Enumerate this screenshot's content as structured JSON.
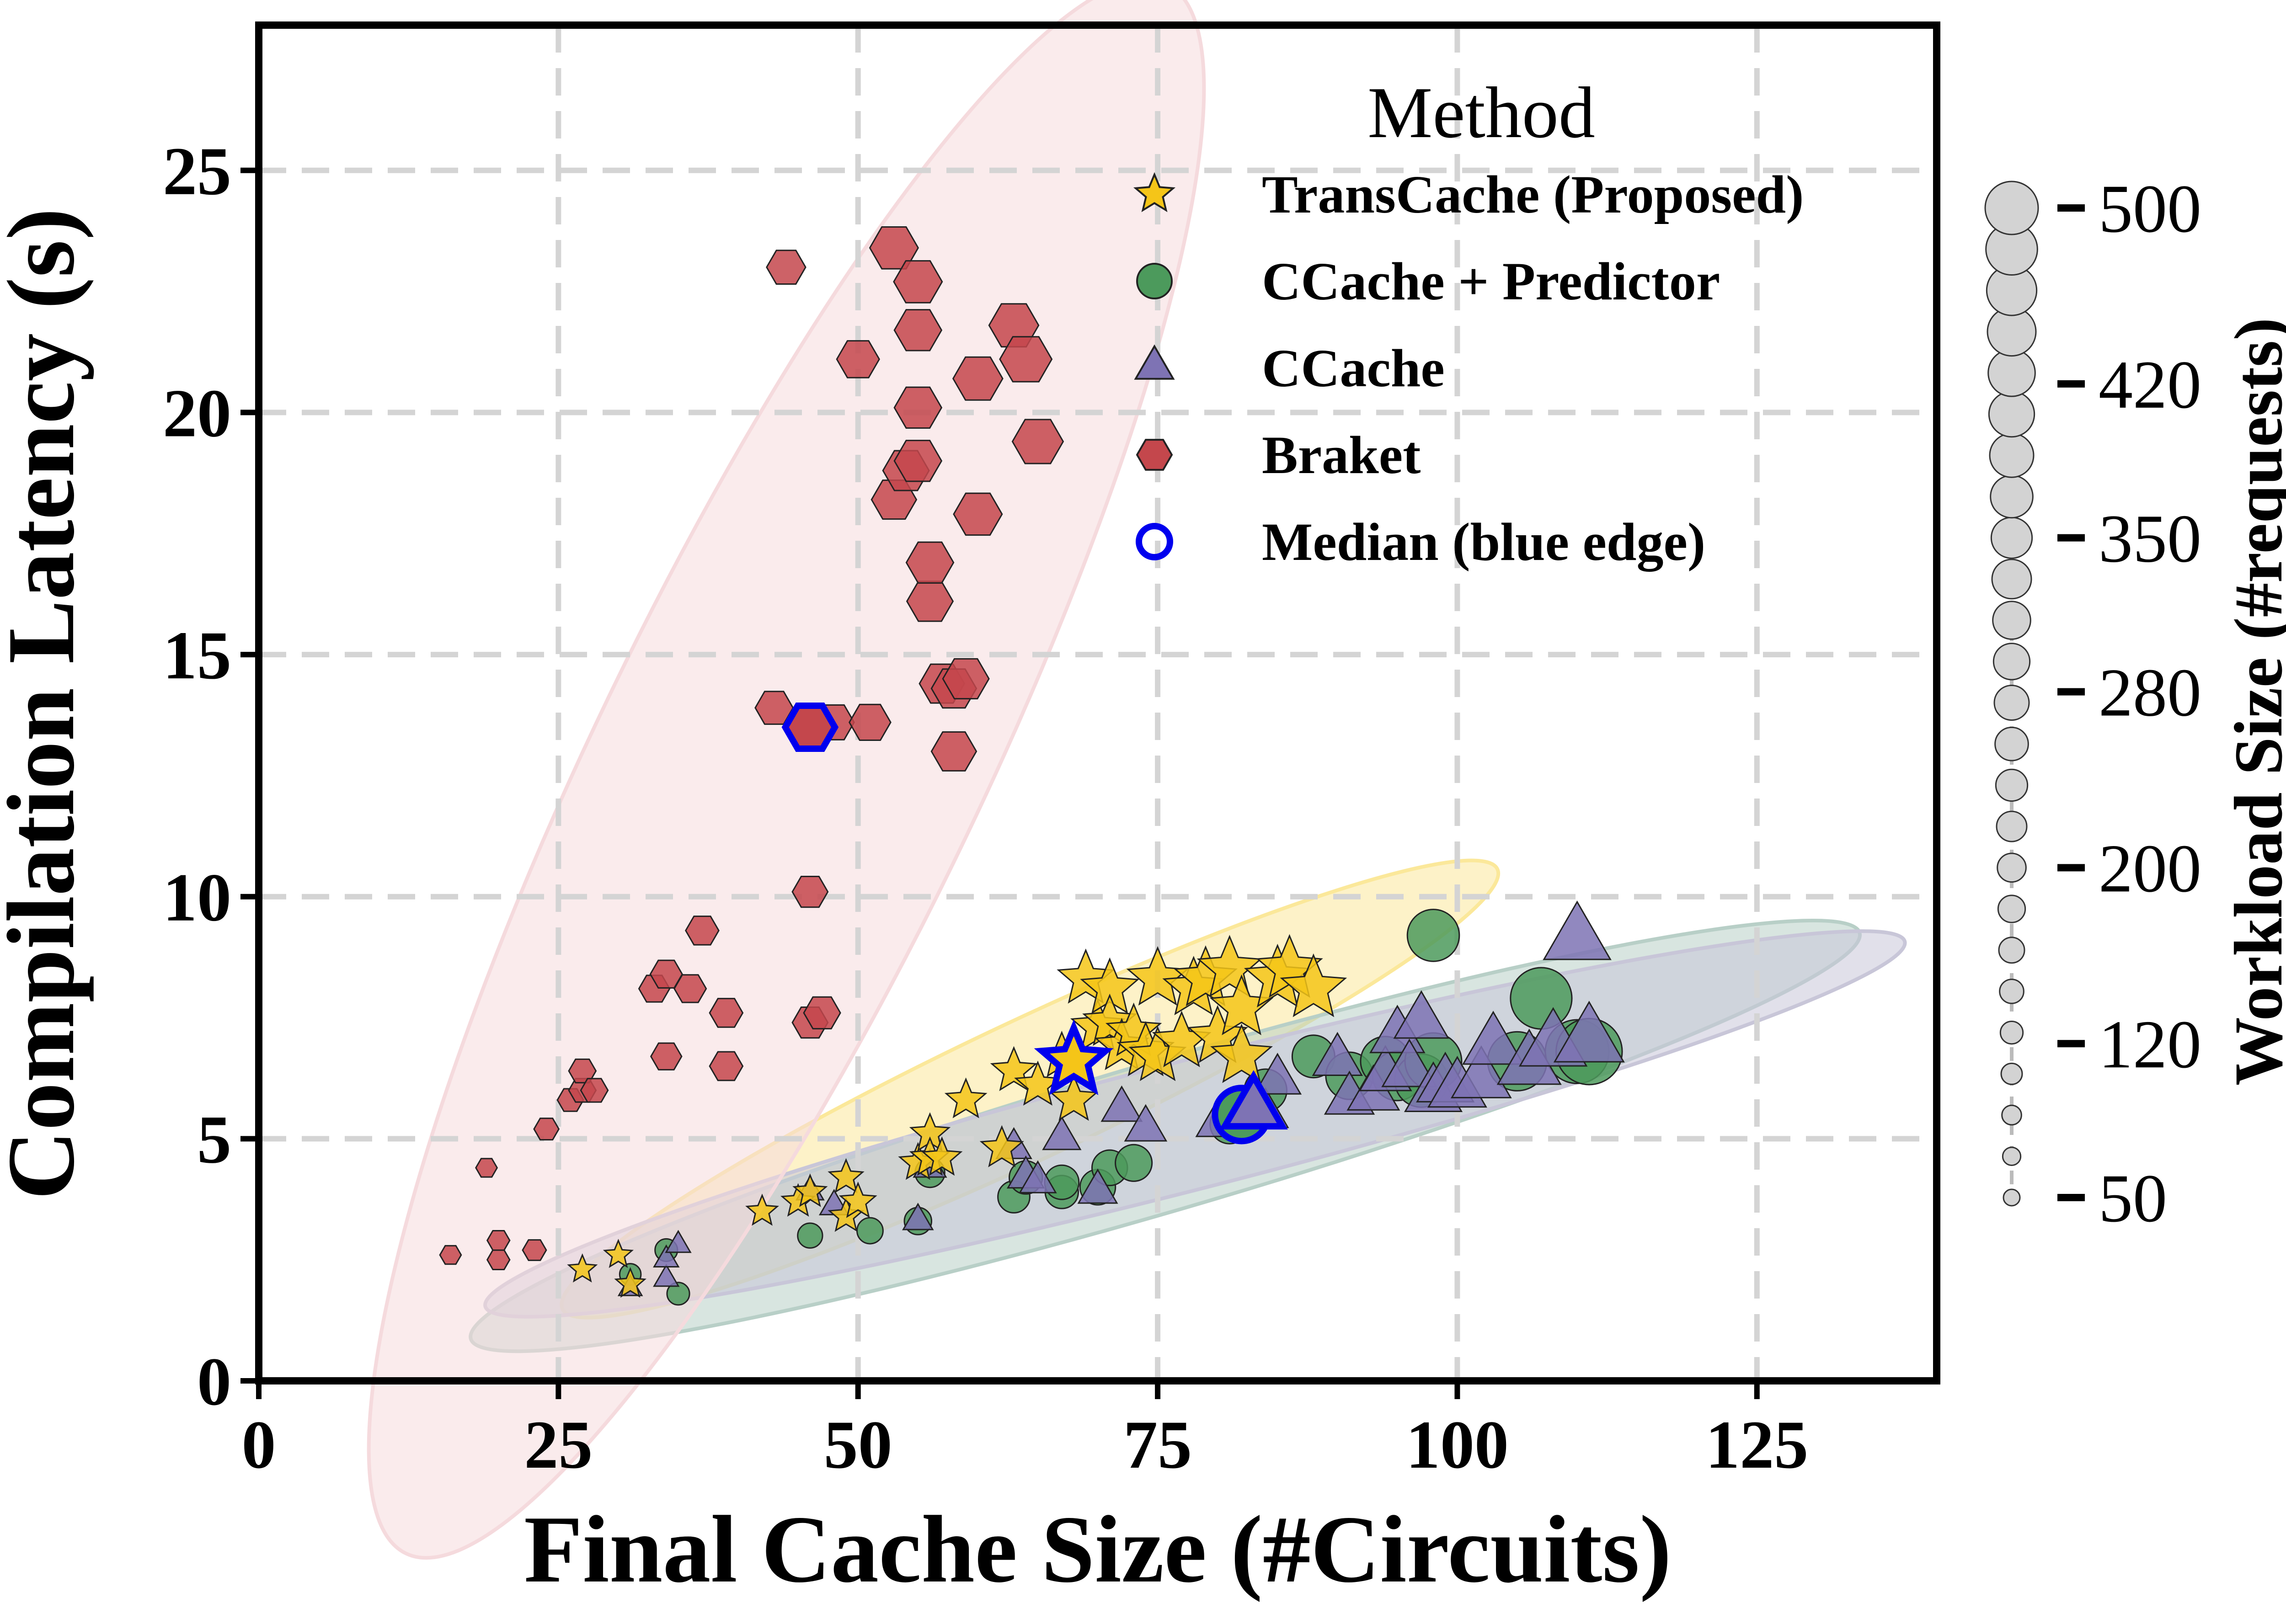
{
  "chart_data": {
    "type": "scatter",
    "xlabel": "Final Cache Size (#Circuits)",
    "ylabel": "Compilation Latency (s)",
    "xlim": [
      0,
      140
    ],
    "ylim": [
      0,
      28
    ],
    "xticks": [
      0,
      25,
      50,
      75,
      100,
      125
    ],
    "yticks": [
      0,
      5,
      10,
      15,
      20,
      25
    ],
    "grid": true,
    "legend": {
      "title": "Method",
      "position": "top-right",
      "entries": [
        {
          "label": "TransCache (Proposed)",
          "marker": "star",
          "color": "#f5c518"
        },
        {
          "label": "CCache + Predictor",
          "marker": "circle",
          "color": "#4c9a5c"
        },
        {
          "label": "CCache",
          "marker": "triangle",
          "color": "#7e73b4"
        },
        {
          "label": "Braket",
          "marker": "hexagon",
          "color": "#c4474c"
        },
        {
          "label": "Median (blue edge)",
          "marker": "circle-open",
          "color": "#0000ee"
        }
      ]
    },
    "size_legend": {
      "title": "Workload Size (#requests)",
      "min": 50,
      "max": 500,
      "ticks": [
        500,
        420,
        350,
        280,
        200,
        120,
        50
      ]
    },
    "series": [
      {
        "name": "TransCache (Proposed)",
        "marker": "star",
        "color": "#f5c518",
        "ellipse_color": "#fbe89a",
        "points": [
          [
            27,
            2.3,
            60
          ],
          [
            30,
            2.6,
            60
          ],
          [
            31,
            2.0,
            70
          ],
          [
            42,
            3.5,
            80
          ],
          [
            45,
            3.7,
            90
          ],
          [
            46,
            3.9,
            90
          ],
          [
            49,
            3.4,
            100
          ],
          [
            49,
            4.2,
            100
          ],
          [
            50,
            3.7,
            110
          ],
          [
            55,
            4.5,
            120
          ],
          [
            56,
            5.1,
            130
          ],
          [
            56,
            4.6,
            130
          ],
          [
            57,
            4.6,
            130
          ],
          [
            59,
            5.8,
            140
          ],
          [
            62,
            4.8,
            150
          ],
          [
            63,
            6.4,
            170
          ],
          [
            65,
            6.1,
            170
          ],
          [
            67,
            6.7,
            180
          ],
          [
            68,
            5.8,
            180
          ],
          [
            69,
            8.3,
            240
          ],
          [
            70,
            7.3,
            220
          ],
          [
            71,
            8.1,
            250
          ],
          [
            71,
            7.4,
            220
          ],
          [
            72,
            6.9,
            220
          ],
          [
            73,
            7.2,
            230
          ],
          [
            74,
            6.8,
            240
          ],
          [
            75,
            8.3,
            270
          ],
          [
            75,
            6.7,
            240
          ],
          [
            77,
            7.0,
            250
          ],
          [
            78,
            8.1,
            270
          ],
          [
            79,
            8.3,
            280
          ],
          [
            80,
            7.1,
            260
          ],
          [
            81,
            8.5,
            290
          ],
          [
            82,
            7.7,
            280
          ],
          [
            82,
            6.7,
            270
          ],
          [
            85,
            8.3,
            300
          ],
          [
            86,
            8.5,
            300
          ],
          [
            88,
            8.1,
            300
          ]
        ],
        "median": [
          68,
          6.6,
          300
        ]
      },
      {
        "name": "CCache + Predictor",
        "marker": "circle",
        "color": "#4c9a5c",
        "ellipse_color": "#b8cfc7",
        "points": [
          [
            31,
            2.2,
            60
          ],
          [
            34,
            2.7,
            70
          ],
          [
            35,
            1.8,
            70
          ],
          [
            46,
            3.0,
            90
          ],
          [
            51,
            3.1,
            100
          ],
          [
            55,
            3.3,
            110
          ],
          [
            56,
            4.3,
            130
          ],
          [
            63,
            3.8,
            150
          ],
          [
            64,
            4.2,
            160
          ],
          [
            67,
            3.9,
            160
          ],
          [
            67,
            4.1,
            170
          ],
          [
            70,
            4.0,
            180
          ],
          [
            71,
            4.4,
            180
          ],
          [
            73,
            4.5,
            190
          ],
          [
            81,
            5.3,
            210
          ],
          [
            84,
            6.0,
            240
          ],
          [
            88,
            6.7,
            240
          ],
          [
            91,
            6.3,
            280
          ],
          [
            94,
            6.6,
            300
          ],
          [
            95,
            6.3,
            300
          ],
          [
            97,
            6.2,
            330
          ],
          [
            98,
            6.6,
            360
          ],
          [
            98,
            9.2,
            320
          ],
          [
            105,
            6.6,
            380
          ],
          [
            107,
            7.9,
            400
          ],
          [
            110,
            6.8,
            420
          ],
          [
            111,
            6.8,
            440
          ]
        ],
        "median": [
          82,
          5.5,
          330
        ]
      },
      {
        "name": "CCache",
        "marker": "triangle",
        "color": "#7e73b4",
        "ellipse_color": "#c8c6d8",
        "points": [
          [
            31,
            1.9,
            60
          ],
          [
            34,
            2.1,
            70
          ],
          [
            34,
            2.5,
            70
          ],
          [
            35,
            2.8,
            70
          ],
          [
            46,
            3.9,
            90
          ],
          [
            48,
            3.6,
            100
          ],
          [
            55,
            3.3,
            110
          ],
          [
            56,
            4.4,
            130
          ],
          [
            63,
            4.8,
            150
          ],
          [
            64,
            4.2,
            160
          ],
          [
            65,
            4.1,
            160
          ],
          [
            67,
            5.0,
            170
          ],
          [
            70,
            3.9,
            180
          ],
          [
            72,
            5.6,
            190
          ],
          [
            74,
            5.2,
            200
          ],
          [
            80,
            5.3,
            210
          ],
          [
            84,
            5.5,
            230
          ],
          [
            85,
            6.2,
            240
          ],
          [
            90,
            6.6,
            260
          ],
          [
            91,
            5.8,
            260
          ],
          [
            93,
            5.9,
            280
          ],
          [
            94,
            6.3,
            280
          ],
          [
            95,
            7.1,
            300
          ],
          [
            96,
            6.4,
            300
          ],
          [
            97,
            7.4,
            300
          ],
          [
            98,
            5.9,
            320
          ],
          [
            99,
            6.1,
            320
          ],
          [
            100,
            6.0,
            330
          ],
          [
            102,
            6.2,
            340
          ],
          [
            103,
            6.9,
            350
          ],
          [
            106,
            6.5,
            370
          ],
          [
            108,
            6.9,
            400
          ],
          [
            110,
            9.1,
            400
          ],
          [
            111,
            7.0,
            420
          ]
        ],
        "median": [
          83,
          5.6,
          330
        ]
      },
      {
        "name": "Braket",
        "marker": "hexagon",
        "color": "#c4474c",
        "ellipse_color": "#f5dadd",
        "points": [
          [
            16,
            2.6,
            60
          ],
          [
            19,
            4.4,
            60
          ],
          [
            20,
            2.5,
            70
          ],
          [
            20,
            2.9,
            70
          ],
          [
            23,
            2.7,
            80
          ],
          [
            24,
            5.2,
            90
          ],
          [
            26,
            5.8,
            100
          ],
          [
            27,
            6.0,
            110
          ],
          [
            27,
            6.4,
            110
          ],
          [
            28,
            6.0,
            110
          ],
          [
            33,
            8.1,
            140
          ],
          [
            34,
            8.4,
            150
          ],
          [
            34,
            6.7,
            140
          ],
          [
            36,
            8.1,
            150
          ],
          [
            37,
            9.3,
            160
          ],
          [
            39,
            7.6,
            160
          ],
          [
            39,
            6.5,
            160
          ],
          [
            43,
            13.9,
            200
          ],
          [
            44,
            23.0,
            210
          ],
          [
            46,
            10.1,
            180
          ],
          [
            46,
            7.4,
            180
          ],
          [
            47,
            7.6,
            190
          ],
          [
            48,
            13.6,
            220
          ],
          [
            50,
            21.1,
            240
          ],
          [
            51,
            13.6,
            230
          ],
          [
            53,
            18.2,
            260
          ],
          [
            53,
            23.4,
            290
          ],
          [
            54,
            18.8,
            270
          ],
          [
            55,
            19.0,
            280
          ],
          [
            55,
            21.7,
            280
          ],
          [
            55,
            20.1,
            280
          ],
          [
            55,
            22.7,
            290
          ],
          [
            56,
            16.1,
            270
          ],
          [
            56,
            16.9,
            280
          ],
          [
            57,
            14.4,
            260
          ],
          [
            58,
            14.3,
            260
          ],
          [
            58,
            13.0,
            260
          ],
          [
            59,
            14.5,
            270
          ],
          [
            60,
            17.9,
            290
          ],
          [
            60,
            20.7,
            300
          ],
          [
            63,
            21.8,
            300
          ],
          [
            64,
            21.1,
            320
          ],
          [
            65,
            19.4,
            310
          ]
        ],
        "median": [
          46,
          13.5,
          300
        ]
      }
    ]
  }
}
